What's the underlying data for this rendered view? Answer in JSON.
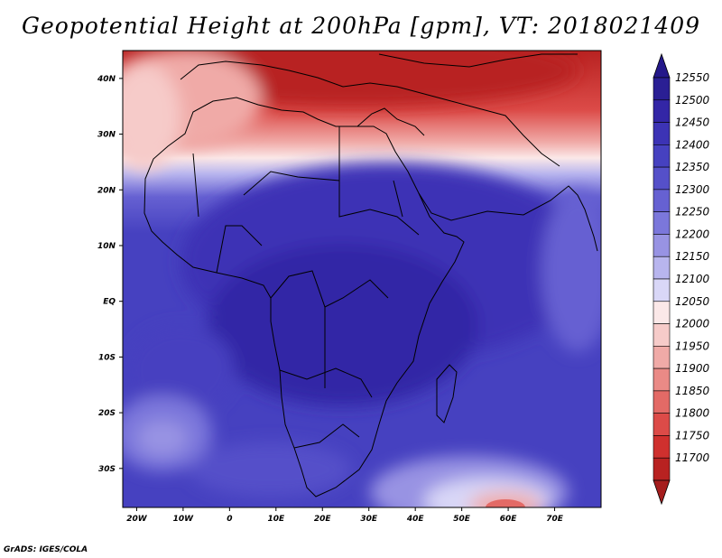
{
  "title": "Geopotential Height at 200hPa [gpm], VT: 2018021409",
  "credit": "GrADS: IGES/COLA",
  "map": {
    "lon_range": [
      -23,
      80
    ],
    "lat_range": [
      -37,
      45
    ],
    "lon_ticks": [
      {
        "lon": -20,
        "label": "20W"
      },
      {
        "lon": -10,
        "label": "10W"
      },
      {
        "lon": 0,
        "label": "0"
      },
      {
        "lon": 10,
        "label": "10E"
      },
      {
        "lon": 20,
        "label": "20E"
      },
      {
        "lon": 30,
        "label": "30E"
      },
      {
        "lon": 40,
        "label": "40E"
      },
      {
        "lon": 50,
        "label": "50E"
      },
      {
        "lon": 60,
        "label": "60E"
      },
      {
        "lon": 70,
        "label": "70E"
      }
    ],
    "lat_ticks": [
      {
        "lat": 40,
        "label": "40N"
      },
      {
        "lat": 30,
        "label": "30N"
      },
      {
        "lat": 20,
        "label": "20N"
      },
      {
        "lat": 10,
        "label": "10N"
      },
      {
        "lat": 0,
        "label": "EQ"
      },
      {
        "lat": -10,
        "label": "10S"
      },
      {
        "lat": -20,
        "label": "20S"
      },
      {
        "lat": -30,
        "label": "30S"
      }
    ]
  },
  "colorbar": {
    "levels": [
      {
        "label": "12550",
        "color": "#2a1f94"
      },
      {
        "label": "12500",
        "color": "#3326a6"
      },
      {
        "label": "12450",
        "color": "#3c33b5"
      },
      {
        "label": "12400",
        "color": "#4641c0"
      },
      {
        "label": "12350",
        "color": "#5550c9"
      },
      {
        "label": "12300",
        "color": "#6661d2"
      },
      {
        "label": "12250",
        "color": "#7b77db"
      },
      {
        "label": "12200",
        "color": "#9893e3"
      },
      {
        "label": "12150",
        "color": "#b8b5ee"
      },
      {
        "label": "12100",
        "color": "#d9d7f7"
      },
      {
        "label": "12050",
        "color": "#fbe8e8"
      },
      {
        "label": "12000",
        "color": "#f6cbc9"
      },
      {
        "label": "11950",
        "color": "#f0aaa7"
      },
      {
        "label": "11900",
        "color": "#ea8a86"
      },
      {
        "label": "11850",
        "color": "#e36a66"
      },
      {
        "label": "11800",
        "color": "#dc4b48"
      },
      {
        "label": "11750",
        "color": "#cf302e"
      },
      {
        "label": "11700",
        "color": "#b82221"
      }
    ],
    "top_arrow_color": "#24188a",
    "bottom_arrow_color": "#a51d1d"
  }
}
